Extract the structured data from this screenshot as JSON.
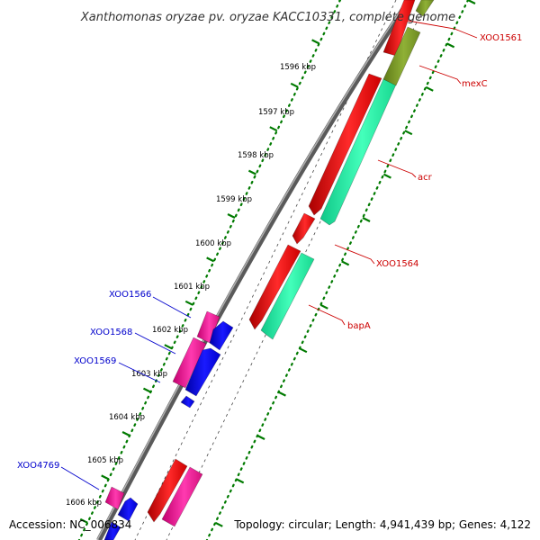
{
  "title": "Xanthomonas oryzae pv. oryzae KACC10331, complete genome",
  "footer": {
    "accession": "Accession: NC_006834",
    "topology": "Topology: circular; Length: 4,941,439 bp; Genes: 4,122"
  },
  "ticks": [
    "1596 kbp",
    "1597 kbp",
    "1598 kbp",
    "1599 kbp",
    "1600 kbp",
    "1601 kbp",
    "1602 kbp",
    "1603 kbp",
    "1604 kbp",
    "1605 kbp",
    "1606 kbp"
  ],
  "labels": {
    "right": [
      "XOO1561",
      "mexC",
      "acr",
      "XOO1564",
      "bapA"
    ],
    "left": [
      "XOO1566",
      "XOO1568",
      "XOO1569",
      "XOO4769"
    ]
  },
  "colors": {
    "cds_forward": "#ff0000",
    "cds_reverse": "#ff1a9c",
    "blue_feature": "#0000ff",
    "teal_feature": "#22f5a8",
    "olive_feature": "#809f2a",
    "tick_green": "#007a00",
    "backbone": "#777777",
    "label_red": "#cc0000",
    "label_blue": "#0000cc"
  }
}
